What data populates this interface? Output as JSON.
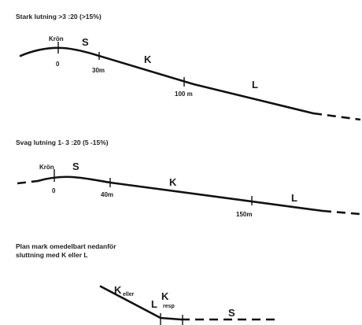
{
  "diagram1": {
    "heading": "Stark lutning  >3 :20  (>15%)",
    "crest": "Krön",
    "zone_s": "S",
    "zone_k": "K",
    "zone_l": "L",
    "mark_0": "0",
    "mark_30": "30m",
    "mark_100": "100 m"
  },
  "diagram2": {
    "heading": "Svag lutning   1- 3 :20  (5 -15%)",
    "crest": "Krön",
    "zone_s": "S",
    "zone_k": "K",
    "zone_l": "L",
    "mark_0": "0",
    "mark_40": "40m",
    "mark_150": "150m"
  },
  "diagram3": {
    "heading_line1": "Plan mark omedelbart nedanför",
    "heading_line2": "sluttning med K eller L",
    "label_k": "K",
    "label_eller": "eller",
    "label_l": "L",
    "label_k2": "K",
    "label_resp": "resp",
    "label_s": "S"
  }
}
